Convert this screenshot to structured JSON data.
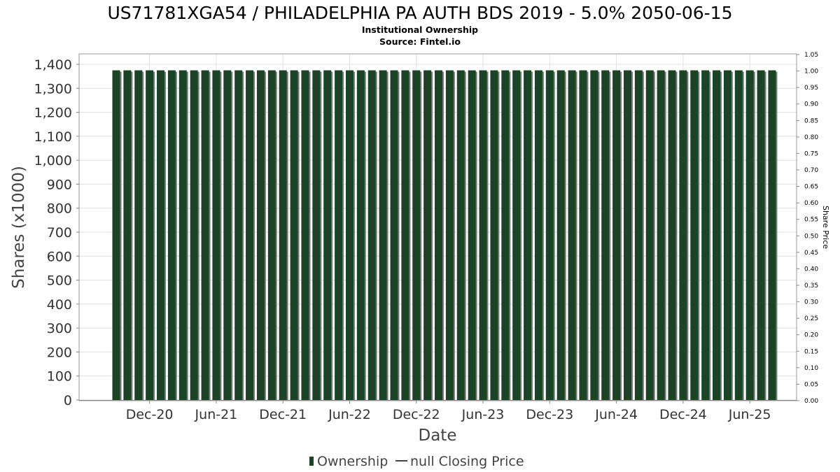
{
  "title": "US71781XGA54 / PHILADELPHIA PA AUTH BDS 2019 - 5.0% 2050-06-15",
  "subtitle": "Institutional Ownership",
  "source": "Source: Fintel.io",
  "colors": {
    "bar": "#1a4425",
    "bar_shadow": "#7a7a7a",
    "grid": "#e0e0e0",
    "frame": "#9a9a9a"
  },
  "legend": {
    "ownership": "Ownership",
    "price": "null Closing Price"
  },
  "chart_data": {
    "type": "bar",
    "title": "US71781XGA54 / PHILADELPHIA PA AUTH BDS 2019 - 5.0% 2050-06-15",
    "subtitle": "Institutional Ownership",
    "xlabel": "Date",
    "ylabel": "Shares (x1000)",
    "y2label": "Share Price",
    "ylim": [
      0,
      1400
    ],
    "y2lim": [
      0,
      1.05
    ],
    "grid": true,
    "legend_position": "bottom",
    "xticks": [
      "Dec-20",
      "Jun-21",
      "Dec-21",
      "Jun-22",
      "Dec-22",
      "Jun-23",
      "Dec-23",
      "Jun-24",
      "Dec-24",
      "Jun-25"
    ],
    "yticks": [
      "0",
      "100",
      "200",
      "300",
      "400",
      "500",
      "600",
      "700",
      "800",
      "900",
      "1,000",
      "1,100",
      "1,200",
      "1,300",
      "1,400"
    ],
    "y2ticks": [
      "0.00",
      "0.05",
      "0.10",
      "0.15",
      "0.20",
      "0.25",
      "0.30",
      "0.35",
      "0.40",
      "0.45",
      "0.50",
      "0.55",
      "0.60",
      "0.65",
      "0.70",
      "0.75",
      "0.80",
      "0.85",
      "0.90",
      "0.95",
      "1.00",
      "1.05"
    ],
    "x_start": "2020-09",
    "x_end": "2025-08",
    "x_step": "monthly",
    "series": [
      {
        "name": "Ownership",
        "values": [
          1375,
          1375,
          1375,
          1375,
          1375,
          1375,
          1375,
          1375,
          1375,
          1375,
          1375,
          1375,
          1375,
          1375,
          1375,
          1375,
          1375,
          1375,
          1375,
          1375,
          1375,
          1375,
          1375,
          1375,
          1375,
          1375,
          1375,
          1375,
          1375,
          1375,
          1375,
          1375,
          1375,
          1375,
          1375,
          1375,
          1375,
          1375,
          1375,
          1375,
          1375,
          1375,
          1375,
          1375,
          1375,
          1375,
          1375,
          1375,
          1375,
          1375,
          1375,
          1375,
          1375,
          1375,
          1375,
          1375,
          1375,
          1375,
          1375,
          1375
        ]
      }
    ]
  }
}
